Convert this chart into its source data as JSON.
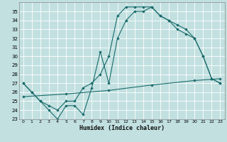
{
  "xlabel": "Humidex (Indice chaleur)",
  "bg_color": "#c2e0e0",
  "line_color": "#1a6b6b",
  "grid_color": "#ffffff",
  "xlim": [
    -0.5,
    23.5
  ],
  "ylim": [
    23,
    36
  ],
  "yticks": [
    23,
    24,
    25,
    26,
    27,
    28,
    29,
    30,
    31,
    32,
    33,
    34,
    35
  ],
  "xticks": [
    0,
    1,
    2,
    3,
    4,
    5,
    6,
    7,
    8,
    9,
    10,
    11,
    12,
    13,
    14,
    15,
    16,
    17,
    18,
    19,
    20,
    21,
    22,
    23
  ],
  "line1_x": [
    0,
    1,
    2,
    3,
    4,
    5,
    6,
    7,
    8,
    9,
    10,
    11,
    12,
    13,
    14,
    15,
    16,
    17,
    18,
    19,
    20,
    21,
    22,
    23
  ],
  "line1_y": [
    27,
    26,
    25,
    24,
    23,
    24.5,
    24.5,
    23.5,
    26.5,
    30.5,
    27,
    32,
    34,
    35,
    35,
    35.5,
    34.5,
    34,
    33,
    32.5,
    32,
    30,
    27.5,
    27
  ],
  "line2_x": [
    0,
    1,
    2,
    3,
    4,
    5,
    6,
    7,
    8,
    9,
    10,
    11,
    12,
    13,
    14,
    15,
    16,
    17,
    18,
    19,
    20,
    21,
    22,
    23
  ],
  "line2_y": [
    27,
    26,
    25,
    24.5,
    24,
    25,
    25,
    26.5,
    27,
    28,
    30,
    34.5,
    35.5,
    35.5,
    35.5,
    35.5,
    34.5,
    34,
    33.5,
    33,
    32,
    30,
    27.5,
    27
  ],
  "line3_x": [
    0,
    23
  ],
  "line3_y": [
    25.5,
    27.5
  ],
  "line3_mid_x": [
    0,
    5,
    10,
    15,
    20,
    23
  ],
  "line3_mid_y": [
    25.5,
    25.8,
    26.2,
    26.8,
    27.3,
    27.5
  ]
}
